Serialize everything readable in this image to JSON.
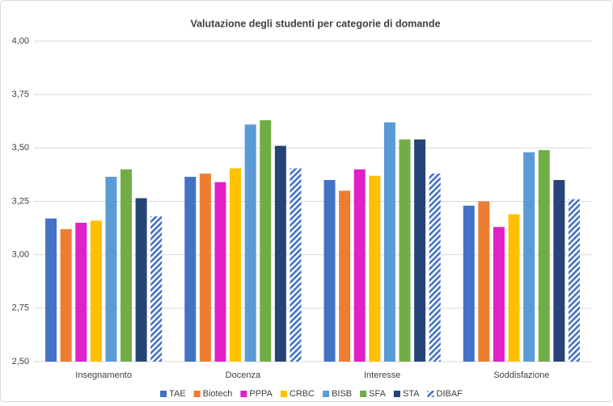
{
  "chart_data": {
    "type": "bar",
    "title": "Valutazione degli studenti per categorie di domande",
    "categories": [
      "Insegnamento",
      "Docenza",
      "Interesse",
      "Soddisfazione"
    ],
    "series": [
      {
        "name": "TAE",
        "color": "#4472c4",
        "values": [
          3.17,
          3.365,
          3.35,
          3.23
        ]
      },
      {
        "name": "Biotech",
        "color": "#ed7d31",
        "values": [
          3.12,
          3.38,
          3.3,
          3.25
        ]
      },
      {
        "name": "PPPA",
        "color": "#e020c8",
        "values": [
          3.15,
          3.34,
          3.4,
          3.13
        ]
      },
      {
        "name": "CRBC",
        "color": "#ffc000",
        "values": [
          3.16,
          3.405,
          3.37,
          3.19
        ]
      },
      {
        "name": "BISB",
        "color": "#5b9bd5",
        "values": [
          3.365,
          3.61,
          3.62,
          3.48
        ]
      },
      {
        "name": "SFA",
        "color": "#70ad47",
        "values": [
          3.4,
          3.63,
          3.54,
          3.49
        ]
      },
      {
        "name": "STA",
        "color": "#264478",
        "values": [
          3.265,
          3.51,
          3.54,
          3.35
        ]
      },
      {
        "name": "DIBAF",
        "color": "#4472c4",
        "pattern": "diagonal",
        "values": [
          3.18,
          3.405,
          3.38,
          3.26
        ]
      }
    ],
    "ylim": [
      2.5,
      4.0
    ],
    "yticks": [
      {
        "value": 2.5,
        "label": "2,50"
      },
      {
        "value": 2.75,
        "label": "2,75"
      },
      {
        "value": 3.0,
        "label": "3,00"
      },
      {
        "value": 3.25,
        "label": "3,25"
      },
      {
        "value": 3.5,
        "label": "3,50"
      },
      {
        "value": 3.75,
        "label": "3,75"
      },
      {
        "value": 4.0,
        "label": "4,00"
      }
    ],
    "grid": true,
    "legend": "bottom"
  }
}
